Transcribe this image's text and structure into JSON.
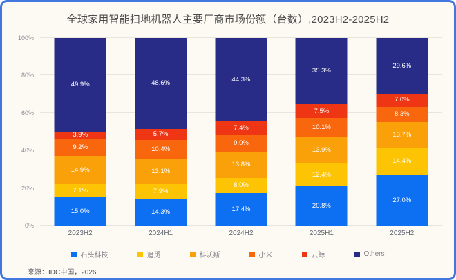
{
  "title": "全球家用智能扫地机器人主要厂商市场份额（台数）,2023H2-2025H2",
  "source": "来源：IDC中国，2026",
  "colors": {
    "frame_border": "#4377e0",
    "background": "#fdfaf4",
    "gridline": "#e9e5de",
    "segment_label_text": "#ffffff"
  },
  "chart_data": {
    "type": "bar",
    "variant": "100%-stacked-column",
    "title": "全球家用智能扫地机器人主要厂商市场份额（台数）,2023H2-2025H2",
    "categories": [
      "2023H2",
      "2024H1",
      "2024H2",
      "2025H1",
      "2025H2"
    ],
    "series": [
      {
        "name": "石头科技",
        "color": "#0d6ff2",
        "values": [
          15.0,
          14.3,
          17.4,
          20.8,
          27.0
        ]
      },
      {
        "name": "追觅",
        "color": "#fdc403",
        "values": [
          7.1,
          7.9,
          8.0,
          12.4,
          14.4
        ]
      },
      {
        "name": "科沃斯",
        "color": "#faa008",
        "values": [
          14.9,
          13.1,
          13.8,
          13.9,
          13.7
        ]
      },
      {
        "name": "小米",
        "color": "#f8670e",
        "values": [
          9.2,
          10.4,
          9.0,
          10.1,
          8.3
        ]
      },
      {
        "name": "云鲸",
        "color": "#ee3514",
        "values": [
          3.9,
          5.7,
          7.4,
          7.5,
          7.0
        ]
      },
      {
        "name": "Others",
        "color": "#282c86",
        "values": [
          49.9,
          48.6,
          44.3,
          35.3,
          29.6
        ]
      }
    ],
    "xlabel": "",
    "ylabel": "",
    "ylim": [
      0,
      100
    ],
    "y_ticks": [
      0,
      20,
      40,
      60,
      80,
      100
    ],
    "y_tick_suffix": "%",
    "grid": true,
    "legend_position": "bottom",
    "data_labels": "percent-one-decimal"
  }
}
